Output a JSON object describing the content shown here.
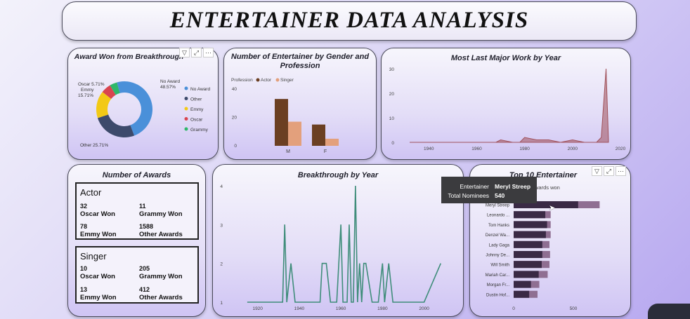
{
  "dashboard": {
    "title": "ENTERTAINER DATA ANALYSIS"
  },
  "icons": [
    "filter-icon",
    "focus-mode-icon",
    "more-options-icon"
  ],
  "colors": {
    "accent": "#4a4a5a",
    "actor": "#6b3f22",
    "singer": "#e3a07c",
    "area": "#a0515a",
    "line": "#3f8d7a",
    "bar_dark": "#3a2a45",
    "bar_light": "#8f6f92"
  },
  "donut": {
    "title": "Award Won from Breakthrough",
    "slices": [
      {
        "name": "No Award",
        "label": "No Award",
        "pct_label": "48.57%",
        "value": 48.57,
        "color": "#4a90d9"
      },
      {
        "name": "Other",
        "label": "Other 25.71%",
        "value": 25.71,
        "color": "#3d4a6b"
      },
      {
        "name": "Emmy",
        "label": "Emmy",
        "pct_label": "15.71%",
        "value": 15.71,
        "color": "#f2c916"
      },
      {
        "name": "Oscar",
        "label": "Oscar 5.71%",
        "value": 5.71,
        "color": "#d9454f"
      },
      {
        "name": "Grammy",
        "label": "",
        "value": 4.29,
        "color": "#2fb86a"
      }
    ]
  },
  "gender_chart": {
    "title": "Number of Entertainer by Gender and Profession",
    "legend_title": "Profession",
    "chart_data": {
      "type": "bar",
      "categories": [
        "M",
        "F"
      ],
      "series": [
        {
          "name": "Actor",
          "values": [
            33,
            15
          ]
        },
        {
          "name": "Singer",
          "values": [
            17,
            5
          ]
        }
      ],
      "ylim": [
        0,
        40
      ],
      "yticks": [
        "0",
        "20",
        "40"
      ]
    }
  },
  "work_chart": {
    "title": "Most Last Major Work by Year",
    "chart_data": {
      "type": "area",
      "x": [
        1932,
        1960,
        1966,
        1968,
        1970,
        1975,
        1978,
        1980,
        1985,
        1990,
        1995,
        2000,
        2005,
        2010,
        2012,
        2014,
        2015
      ],
      "y": [
        0,
        0,
        0,
        0,
        1,
        0,
        0,
        2,
        1,
        1,
        0,
        1,
        0,
        0,
        2,
        30,
        1
      ],
      "xlim": [
        1932,
        2020
      ],
      "ylim": [
        0,
        30
      ],
      "xticks": [
        "1940",
        "1960",
        "1980",
        "2000",
        "2020"
      ],
      "yticks": [
        "0",
        "10",
        "20",
        "30"
      ]
    }
  },
  "awards": {
    "title": "Number of Awards",
    "actor": {
      "heading": "Actor",
      "oscar": "32",
      "oscar_label": "Oscar Won",
      "grammy": "11",
      "grammy_label": "Grammy Won",
      "emmy": "78",
      "emmy_label": "Emmy Won",
      "other": "1588",
      "other_label": "Other Awards"
    },
    "singer": {
      "heading": "Singer",
      "oscar": "10",
      "oscar_label": "Oscar Won",
      "grammy": "205",
      "grammy_label": "Grammy Won",
      "emmy": "13",
      "emmy_label": "Emmy Won",
      "other": "412",
      "other_label": "Other Awards"
    }
  },
  "breakthrough": {
    "title": "Breakthrough by Year",
    "chart_data": {
      "type": "line",
      "x": [
        1915,
        1930,
        1932,
        1933,
        1934,
        1936,
        1938,
        1940,
        1945,
        1950,
        1951,
        1953,
        1955,
        1956,
        1958,
        1960,
        1961,
        1962,
        1963,
        1964,
        1965,
        1966,
        1967,
        1968,
        1969,
        1970,
        1971,
        1972,
        1975,
        1978,
        1980,
        1981,
        1983,
        1985,
        1990,
        2000,
        2008
      ],
      "y": [
        1,
        1,
        1,
        3,
        1,
        2,
        1,
        1,
        1,
        1,
        2,
        2,
        1,
        1,
        1,
        3,
        1,
        1,
        1,
        3,
        1,
        1,
        4,
        1,
        2,
        1,
        2,
        2,
        1,
        1,
        2,
        1,
        2,
        1,
        1,
        1,
        2
      ],
      "xlim": [
        1912,
        2015
      ],
      "ylim": [
        1,
        4
      ],
      "xticks": [
        "1920",
        "1940",
        "1960",
        "1980",
        "2000"
      ],
      "yticks": [
        "1",
        "2",
        "3",
        "4"
      ]
    }
  },
  "top10": {
    "title": "Top 10 Entertainer",
    "legend_partial": "wards won",
    "chart_data": {
      "type": "bar",
      "categories": [
        "Meryl Streep",
        "Leonardo ...",
        "Tom Hanks",
        "Denzel Wa...",
        "Lady Gaga",
        "Johnny De...",
        "Will Smith",
        "Mariah Car...",
        "Morgan Fr...",
        "Dustin Hof..."
      ],
      "series": [
        {
          "name": "Total Nominees",
          "values": [
            540,
            265,
            280,
            270,
            240,
            240,
            235,
            210,
            145,
            130
          ]
        },
        {
          "name": "Awards won",
          "values": [
            720,
            310,
            310,
            310,
            300,
            305,
            300,
            285,
            215,
            200
          ]
        }
      ],
      "xlim": [
        0,
        900
      ],
      "xticks": [
        "0",
        "500"
      ]
    }
  },
  "tooltip": {
    "entertainer_label": "Entertainer",
    "entertainer_value": "Meryl Streep",
    "nominees_label": "Total Nominees",
    "nominees_value": "540"
  }
}
